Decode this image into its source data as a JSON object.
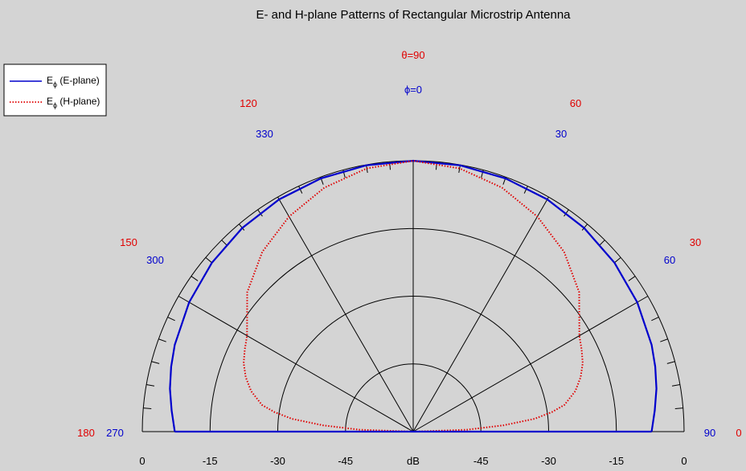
{
  "chart_data": {
    "type": "polar",
    "title": "E- and H-plane Patterns of Rectangular Microstrip Antenna",
    "theta_label": "θ=90",
    "phi_label": "ϕ=0",
    "axis_unit": "dB",
    "radial_range": [
      -60,
      0
    ],
    "radial_ticks": [
      {
        "db": 0,
        "label": "0"
      },
      {
        "db": -15,
        "label": "-15"
      },
      {
        "db": -30,
        "label": "-30"
      },
      {
        "db": -45,
        "label": "-45"
      }
    ],
    "theta_labels": [
      {
        "deg": 120,
        "label": "120"
      },
      {
        "deg": 60,
        "label": "60"
      },
      {
        "deg": 150,
        "label": "150"
      },
      {
        "deg": 30,
        "label": "30"
      },
      {
        "deg": 180,
        "label": "180"
      },
      {
        "deg": 0,
        "label": "0"
      }
    ],
    "phi_labels": [
      {
        "deg": 330,
        "label": "330"
      },
      {
        "deg": 30,
        "label": "30"
      },
      {
        "deg": 300,
        "label": "300"
      },
      {
        "deg": 60,
        "label": "60"
      },
      {
        "deg": 270,
        "label": "270"
      },
      {
        "deg": 90,
        "label": "90"
      }
    ],
    "legend": {
      "placement": "top-left",
      "items": [
        {
          "main": "E",
          "sub": "ϕ",
          "rest": " (E-plane)",
          "color": "#0000cc",
          "style": "solid"
        },
        {
          "main": "E",
          "sub": "ϕ",
          "rest": " (H-plane)",
          "color": "#e00000",
          "style": "dotted"
        }
      ]
    },
    "series": [
      {
        "color": "#0000cc",
        "style": "solid",
        "angle_deg": [
          0,
          5,
          10,
          15,
          20,
          30,
          40,
          50,
          60,
          70,
          80,
          90,
          100,
          110,
          120,
          130,
          140,
          150,
          160,
          165,
          170,
          175,
          180
        ],
        "db": [
          -7.2,
          -6.3,
          -5.3,
          -4.5,
          -3.8,
          -2.7,
          -1.8,
          -1.1,
          -0.6,
          -0.3,
          -0.1,
          0,
          -0.1,
          -0.3,
          -0.6,
          -1.1,
          -1.8,
          -2.7,
          -3.8,
          -4.5,
          -5.3,
          -6.3,
          -7.2
        ]
      },
      {
        "color": "#e00000",
        "style": "dotted",
        "angle_deg": [
          0,
          2,
          4,
          6,
          8,
          10,
          14,
          18,
          22,
          26,
          30,
          40,
          50,
          60,
          70,
          80,
          90,
          100,
          110,
          120,
          130,
          140,
          150,
          154,
          158,
          162,
          166,
          170,
          172,
          174,
          176,
          178,
          180
        ],
        "db": [
          -60,
          -48,
          -40,
          -33,
          -29,
          -26,
          -23,
          -21,
          -19.5,
          -18.5,
          -17.5,
          -12,
          -8,
          -5,
          -2.5,
          -0.8,
          0,
          -0.8,
          -2.5,
          -5,
          -8,
          -12,
          -17.5,
          -18.5,
          -19.5,
          -21,
          -23,
          -26,
          -29,
          -33,
          -40,
          -48,
          -60
        ]
      }
    ]
  }
}
